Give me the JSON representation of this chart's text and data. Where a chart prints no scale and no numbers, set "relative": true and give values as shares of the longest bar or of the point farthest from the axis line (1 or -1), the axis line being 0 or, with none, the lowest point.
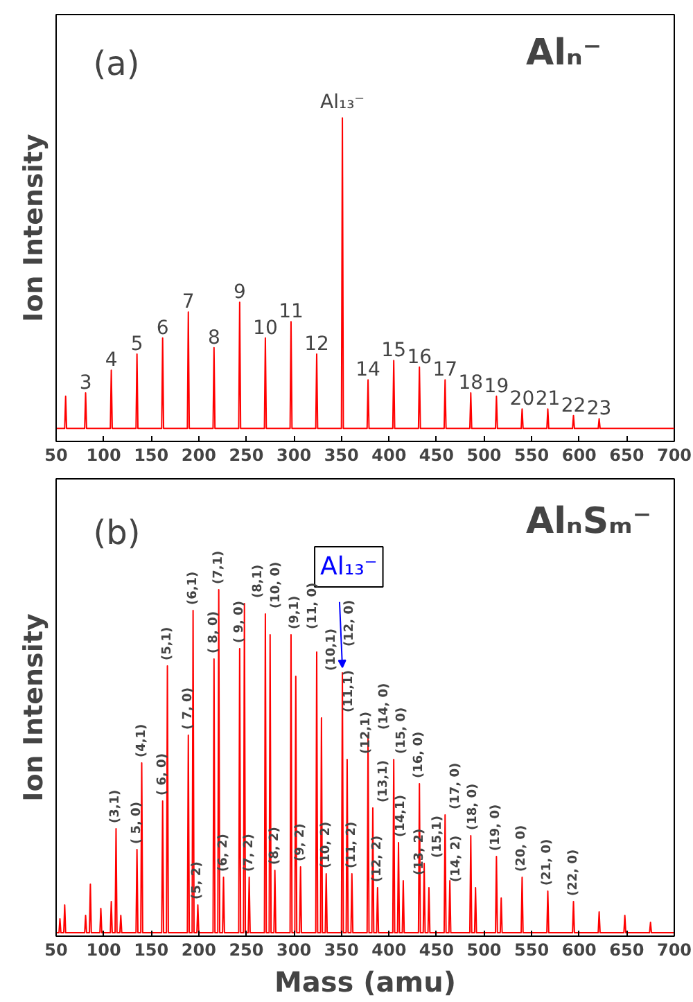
{
  "chart_data": [
    {
      "type": "line",
      "title": "Alₙ⁻",
      "ylabel": "Ion Intensity",
      "relative": true,
      "xlim": [
        50,
        700
      ],
      "xticks": [
        50,
        100,
        150,
        200,
        250,
        300,
        350,
        400,
        450,
        500,
        550,
        600,
        650,
        700
      ],
      "grid": false,
      "marker": "none",
      "line_style": "solid",
      "series": [
        {
          "color": "#ff0000",
          "x": [
            50,
            59,
            60,
            61,
            80,
            81,
            82,
            107,
            108,
            109,
            134,
            135,
            136,
            161,
            162,
            163,
            188,
            189,
            190,
            215,
            216,
            217,
            242,
            243,
            244,
            269,
            270,
            271,
            296,
            297,
            298,
            323,
            324,
            325,
            350,
            351,
            352,
            377,
            378,
            379,
            404,
            405,
            406,
            431,
            432,
            433,
            458,
            459,
            460,
            485,
            486,
            487,
            512,
            513,
            514,
            539,
            540,
            541,
            566,
            567,
            568,
            593,
            594,
            595,
            620,
            621,
            622,
            700
          ],
          "values": [
            0.04,
            0.04,
            0.14,
            0.04,
            0.04,
            0.15,
            0.04,
            0.04,
            0.22,
            0.04,
            0.04,
            0.27,
            0.04,
            0.04,
            0.32,
            0.04,
            0.04,
            0.4,
            0.04,
            0.04,
            0.29,
            0.04,
            0.04,
            0.43,
            0.04,
            0.04,
            0.32,
            0.04,
            0.04,
            0.37,
            0.04,
            0.04,
            0.27,
            0.04,
            0.04,
            1,
            0.04,
            0.04,
            0.19,
            0.04,
            0.04,
            0.25,
            0.04,
            0.04,
            0.23,
            0.04,
            0.04,
            0.19,
            0.04,
            0.04,
            0.15,
            0.04,
            0.04,
            0.14,
            0.04,
            0.04,
            0.1,
            0.04,
            0.04,
            0.1,
            0.04,
            0.04,
            0.08,
            0.04,
            0.04,
            0.07,
            0.04,
            0.04
          ]
        }
      ],
      "annotations": [
        "(a)",
        {
          "text": "3",
          "x": 81,
          "y": 0.15
        },
        {
          "text": "4",
          "x": 108,
          "y": 0.22
        },
        {
          "text": "5",
          "x": 135,
          "y": 0.27
        },
        {
          "text": "6",
          "x": 162,
          "y": 0.32
        },
        {
          "text": "7",
          "x": 189,
          "y": 0.4
        },
        {
          "text": "8",
          "x": 216,
          "y": 0.29
        },
        {
          "text": "9",
          "x": 243,
          "y": 0.43
        },
        {
          "text": "10",
          "x": 270,
          "y": 0.32
        },
        {
          "text": "11",
          "x": 297,
          "y": 0.37
        },
        {
          "text": "12",
          "x": 324,
          "y": 0.27
        },
        {
          "text": "Al₁₃⁻",
          "x": 351,
          "y": 1
        },
        {
          "text": "14",
          "x": 378,
          "y": 0.19
        },
        {
          "text": "15",
          "x": 405,
          "y": 0.25
        },
        {
          "text": "16",
          "x": 432,
          "y": 0.23
        },
        {
          "text": "17",
          "x": 459,
          "y": 0.19
        },
        {
          "text": "18",
          "x": 486,
          "y": 0.15
        },
        {
          "text": "19",
          "x": 513,
          "y": 0.14
        },
        {
          "text": "20",
          "x": 540,
          "y": 0.1
        },
        {
          "text": "21",
          "x": 567,
          "y": 0.1
        },
        {
          "text": "22",
          "x": 594,
          "y": 0.08
        },
        {
          "text": "23",
          "x": 621,
          "y": 0.07
        }
      ]
    },
    {
      "type": "line",
      "title": "AlₙSₘ⁻",
      "xlabel": "Mass (amu)",
      "ylabel": "Ion Intensity",
      "relative": true,
      "xlim": [
        50,
        700
      ],
      "xticks": [
        50,
        100,
        150,
        200,
        250,
        300,
        350,
        400,
        450,
        500,
        550,
        600,
        650,
        700
      ],
      "grid": false,
      "marker": "none",
      "line_style": "solid",
      "series": [
        {
          "color": "#ff0000",
          "x": [
            50,
            53,
            54,
            55,
            58,
            59,
            60,
            80,
            81,
            82,
            85,
            86,
            87,
            96,
            97,
            98,
            107,
            108,
            109,
            112,
            113,
            114,
            117,
            118,
            119,
            134,
            135,
            136,
            139,
            140,
            141,
            161,
            162,
            163,
            166,
            167,
            168,
            188,
            189,
            190,
            193,
            194,
            195,
            198,
            199,
            200,
            215,
            216,
            217,
            220,
            221,
            222,
            225,
            226,
            227,
            242,
            243,
            244,
            247,
            248,
            249,
            252,
            253,
            254,
            269,
            270,
            271,
            274,
            275,
            276,
            279,
            280,
            281,
            296,
            297,
            298,
            301,
            302,
            303,
            306,
            307,
            308,
            323,
            324,
            325,
            328,
            329,
            330,
            333,
            334,
            335,
            350,
            351,
            352,
            355,
            356,
            357,
            360,
            361,
            362,
            377,
            378,
            379,
            382,
            383,
            384,
            387,
            388,
            389,
            404,
            405,
            406,
            409,
            410,
            411,
            414,
            415,
            416,
            431,
            432,
            433,
            436,
            437,
            438,
            441,
            442,
            443,
            458,
            459,
            460,
            463,
            464,
            465,
            485,
            486,
            487,
            490,
            491,
            492,
            512,
            513,
            514,
            517,
            518,
            519,
            539,
            540,
            541,
            566,
            567,
            568,
            593,
            594,
            595,
            620,
            621,
            622,
            647,
            648,
            649,
            674,
            675,
            676,
            700
          ],
          "values": [
            0.01,
            0.01,
            0.05,
            0.01,
            0.01,
            0.09,
            0.01,
            0.01,
            0.06,
            0.01,
            0.01,
            0.15,
            0.01,
            0.01,
            0.08,
            0.01,
            0.01,
            0.1,
            0.01,
            0.01,
            0.31,
            0.01,
            0.01,
            0.06,
            0.01,
            0.01,
            0.25,
            0.01,
            0.01,
            0.5,
            0.01,
            0.01,
            0.39,
            0.01,
            0.01,
            0.78,
            0.01,
            0.01,
            0.58,
            0.01,
            0.01,
            0.94,
            0.01,
            0.01,
            0.09,
            0.01,
            0.01,
            0.8,
            0.01,
            0.01,
            1,
            0.01,
            0.01,
            0.17,
            0.01,
            0.01,
            0.83,
            0.01,
            0.01,
            0.96,
            0.01,
            0.01,
            0.17,
            0.01,
            0.01,
            0.93,
            0.01,
            0.01,
            0.87,
            0.01,
            0.01,
            0.19,
            0.01,
            0.01,
            0.87,
            0.01,
            0.01,
            0.75,
            0.01,
            0.01,
            0.2,
            0.01,
            0.01,
            0.82,
            0.01,
            0.01,
            0.63,
            0.01,
            0.01,
            0.18,
            0.01,
            0.01,
            0.76,
            0.01,
            0.01,
            0.51,
            0.01,
            0.01,
            0.18,
            0.01,
            0.01,
            0.58,
            0.01,
            0.01,
            0.37,
            0.01,
            0.01,
            0.14,
            0.01,
            0.01,
            0.51,
            0.01,
            0.01,
            0.27,
            0.01,
            0.01,
            0.16,
            0.01,
            0.01,
            0.44,
            0.01,
            0.01,
            0.21,
            0.01,
            0.01,
            0.14,
            0.01,
            0.01,
            0.35,
            0.01,
            0.01,
            0.16,
            0.01,
            0.01,
            0.29,
            0.01,
            0.01,
            0.14,
            0.01,
            0.01,
            0.23,
            0.01,
            0.01,
            0.11,
            0.01,
            0.01,
            0.17,
            0.01,
            0.01,
            0.13,
            0.01,
            0.01,
            0.1,
            0.01,
            0.01,
            0.07,
            0.01,
            0.01,
            0.06,
            0.01,
            0.01,
            0.04,
            0.01,
            0.01
          ]
        }
      ],
      "annotations": [
        "(b)",
        {
          "text": "Al₁₃⁻",
          "x": 351,
          "y": 0.76
        },
        {
          "text": "(3,1)",
          "x": 113,
          "y": 0.31
        },
        {
          "text": "( 5, 0)",
          "x": 135,
          "y": 0.25
        },
        {
          "text": "(4,1)",
          "x": 140,
          "y": 0.5
        },
        {
          "text": "( 6, 0)",
          "x": 162,
          "y": 0.39
        },
        {
          "text": "(5,1)",
          "x": 167,
          "y": 0.78
        },
        {
          "text": "( 7, 0)",
          "x": 189,
          "y": 0.58
        },
        {
          "text": "(6,1)",
          "x": 194,
          "y": 0.94
        },
        {
          "text": "(5, 2)",
          "x": 199,
          "y": 0.09
        },
        {
          "text": "( 8, 0)",
          "x": 216,
          "y": 0.8
        },
        {
          "text": "(7,1)",
          "x": 221,
          "y": 1
        },
        {
          "text": "(6, 2)",
          "x": 226,
          "y": 0.17
        },
        {
          "text": "( 9, 0)",
          "x": 243,
          "y": 0.83
        },
        {
          "text": "(8,1)",
          "x": 248,
          "y": 0.96
        },
        {
          "text": "(7, 2)",
          "x": 253,
          "y": 0.17
        },
        {
          "text": "(10, 0)",
          "x": 270,
          "y": 0.93
        },
        {
          "text": "(9,1)",
          "x": 275,
          "y": 0.87
        },
        {
          "text": "(8, 2)",
          "x": 280,
          "y": 0.19
        },
        {
          "text": "(11, 0)",
          "x": 297,
          "y": 0.87
        },
        {
          "text": "(10,1)",
          "x": 302,
          "y": 0.75
        },
        {
          "text": "(9, 2)",
          "x": 307,
          "y": 0.2
        },
        {
          "text": "(12, 0)",
          "x": 324,
          "y": 0.82
        },
        {
          "text": "(11,1)",
          "x": 329,
          "y": 0.63
        },
        {
          "text": "(10, 2)",
          "x": 334,
          "y": 0.18
        },
        {
          "text": "(12,1)",
          "x": 356,
          "y": 0.51
        },
        {
          "text": "(11, 2)",
          "x": 361,
          "y": 0.18
        },
        {
          "text": "(14, 0)",
          "x": 378,
          "y": 0.58
        },
        {
          "text": "(13,1)",
          "x": 383,
          "y": 0.37
        },
        {
          "text": "(12, 2)",
          "x": 388,
          "y": 0.14
        },
        {
          "text": "(15, 0)",
          "x": 405,
          "y": 0.51
        },
        {
          "text": "(14,1)",
          "x": 410,
          "y": 0.27
        },
        {
          "text": "(13, 2)",
          "x": 415,
          "y": 0.16
        },
        {
          "text": "(16, 0)",
          "x": 432,
          "y": 0.44
        },
        {
          "text": "(15,1)",
          "x": 437,
          "y": 0.21
        },
        {
          "text": "(14, 2)",
          "x": 442,
          "y": 0.14
        },
        {
          "text": "(17, 0)",
          "x": 459,
          "y": 0.35
        },
        {
          "text": "(18, 0)",
          "x": 486,
          "y": 0.29
        },
        {
          "text": "(19, 0)",
          "x": 513,
          "y": 0.23
        },
        {
          "text": "(20, 0)",
          "x": 540,
          "y": 0.17
        },
        {
          "text": "(21, 0)",
          "x": 567,
          "y": 0.13
        },
        {
          "text": "(22, 0)",
          "x": 594,
          "y": 0.1
        }
      ]
    }
  ]
}
